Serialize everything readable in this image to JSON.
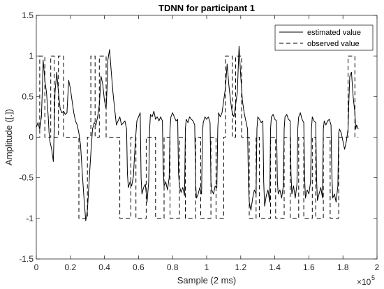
{
  "chart_data": {
    "type": "line",
    "title": "TDNN for participant 1",
    "xlabel": "Sample (2 ms)",
    "ylabel": "Amplitude ([.])",
    "x_exponent_base": "×10",
    "x_exponent_power": "5",
    "xlim": [
      0,
      2
    ],
    "ylim": [
      -1.5,
      1.5
    ],
    "x_ticks": [
      0,
      0.2,
      0.4,
      0.6,
      0.8,
      1,
      1.2,
      1.4,
      1.6,
      1.8,
      2
    ],
    "x_tick_labels": [
      "0",
      "0.2",
      "0.4",
      "0.6",
      "0.8",
      "1",
      "1.2",
      "1.4",
      "1.6",
      "1.8",
      "2"
    ],
    "y_ticks": [
      -1.5,
      -1,
      -0.5,
      0,
      0.5,
      1,
      1.5
    ],
    "y_tick_labels": [
      "-1.5",
      "-1",
      "-0.5",
      "0",
      "0.5",
      "1",
      "1.5"
    ],
    "grid": false,
    "legend_position": "top-right",
    "series": [
      {
        "name": "estimated value",
        "style": "solid",
        "color": "#000000",
        "points": [
          [
            0.0,
            0.12
          ],
          [
            0.01,
            0.18
          ],
          [
            0.02,
            0.1
          ],
          [
            0.03,
            0.25
          ],
          [
            0.035,
            0.55
          ],
          [
            0.04,
            0.95
          ],
          [
            0.05,
            0.7
          ],
          [
            0.06,
            0.55
          ],
          [
            0.07,
            0.25
          ],
          [
            0.075,
            0.05
          ],
          [
            0.08,
            -0.05
          ],
          [
            0.09,
            -0.15
          ],
          [
            0.1,
            -0.3
          ],
          [
            0.105,
            0.1
          ],
          [
            0.11,
            0.55
          ],
          [
            0.12,
            0.8
          ],
          [
            0.13,
            0.55
          ],
          [
            0.14,
            0.35
          ],
          [
            0.15,
            0.3
          ],
          [
            0.16,
            0.32
          ],
          [
            0.17,
            0.28
          ],
          [
            0.18,
            0.3
          ],
          [
            0.185,
            0.5
          ],
          [
            0.19,
            0.7
          ],
          [
            0.2,
            0.6
          ],
          [
            0.21,
            0.45
          ],
          [
            0.22,
            0.3
          ],
          [
            0.23,
            0.2
          ],
          [
            0.24,
            0.15
          ],
          [
            0.25,
            0.05
          ],
          [
            0.26,
            -0.1
          ],
          [
            0.27,
            -0.45
          ],
          [
            0.28,
            -0.75
          ],
          [
            0.29,
            -1.03
          ],
          [
            0.3,
            -0.9
          ],
          [
            0.31,
            -0.55
          ],
          [
            0.32,
            -0.2
          ],
          [
            0.33,
            0.1
          ],
          [
            0.34,
            0.18
          ],
          [
            0.35,
            0.15
          ],
          [
            0.36,
            0.25
          ],
          [
            0.37,
            0.4
          ],
          [
            0.38,
            0.75
          ],
          [
            0.39,
            0.65
          ],
          [
            0.4,
            0.45
          ],
          [
            0.41,
            0.35
          ],
          [
            0.415,
            0.6
          ],
          [
            0.42,
            0.95
          ],
          [
            0.43,
            1.08
          ],
          [
            0.44,
            0.8
          ],
          [
            0.45,
            0.55
          ],
          [
            0.46,
            0.35
          ],
          [
            0.47,
            0.15
          ],
          [
            0.48,
            0.2
          ],
          [
            0.49,
            0.25
          ],
          [
            0.5,
            0.15
          ],
          [
            0.52,
            0.2
          ],
          [
            0.53,
            0.1
          ],
          [
            0.535,
            -0.45
          ],
          [
            0.54,
            -0.62
          ],
          [
            0.55,
            -0.55
          ],
          [
            0.56,
            -0.6
          ],
          [
            0.57,
            -0.48
          ],
          [
            0.58,
            -0.1
          ],
          [
            0.59,
            0.2
          ],
          [
            0.6,
            0.25
          ],
          [
            0.61,
            0.3
          ],
          [
            0.615,
            -0.5
          ],
          [
            0.62,
            -0.7
          ],
          [
            0.63,
            -0.62
          ],
          [
            0.64,
            -0.58
          ],
          [
            0.65,
            -0.8
          ],
          [
            0.66,
            -0.55
          ],
          [
            0.665,
            0.1
          ],
          [
            0.67,
            0.28
          ],
          [
            0.68,
            0.25
          ],
          [
            0.69,
            0.32
          ],
          [
            0.7,
            0.22
          ],
          [
            0.71,
            0.25
          ],
          [
            0.72,
            0.2
          ],
          [
            0.73,
            0.25
          ],
          [
            0.74,
            0.2
          ],
          [
            0.745,
            -0.4
          ],
          [
            0.75,
            -0.6
          ],
          [
            0.76,
            -0.55
          ],
          [
            0.77,
            -0.65
          ],
          [
            0.78,
            -0.5
          ],
          [
            0.785,
            0.1
          ],
          [
            0.79,
            0.25
          ],
          [
            0.8,
            0.3
          ],
          [
            0.81,
            0.25
          ],
          [
            0.82,
            0.2
          ],
          [
            0.83,
            0.22
          ],
          [
            0.835,
            -0.45
          ],
          [
            0.84,
            -0.6
          ],
          [
            0.85,
            -0.68
          ],
          [
            0.86,
            -0.62
          ],
          [
            0.87,
            -0.72
          ],
          [
            0.875,
            0.1
          ],
          [
            0.88,
            0.22
          ],
          [
            0.89,
            0.18
          ],
          [
            0.9,
            0.25
          ],
          [
            0.91,
            0.22
          ],
          [
            0.92,
            0.2
          ],
          [
            0.93,
            0.15
          ],
          [
            0.935,
            -0.55
          ],
          [
            0.94,
            -0.75
          ],
          [
            0.95,
            -0.7
          ],
          [
            0.96,
            -0.62
          ],
          [
            0.97,
            -0.7
          ],
          [
            0.975,
            0.05
          ],
          [
            0.98,
            0.18
          ],
          [
            0.99,
            0.25
          ],
          [
            1.0,
            0.22
          ],
          [
            1.01,
            0.25
          ],
          [
            1.02,
            0.18
          ],
          [
            1.025,
            -0.55
          ],
          [
            1.03,
            -0.65
          ],
          [
            1.04,
            -0.7
          ],
          [
            1.05,
            -0.6
          ],
          [
            1.06,
            -0.62
          ],
          [
            1.065,
            0.1
          ],
          [
            1.07,
            0.3
          ],
          [
            1.08,
            0.25
          ],
          [
            1.09,
            0.3
          ],
          [
            1.1,
            0.45
          ],
          [
            1.11,
            0.6
          ],
          [
            1.12,
            0.9
          ],
          [
            1.13,
            0.65
          ],
          [
            1.14,
            0.45
          ],
          [
            1.15,
            0.3
          ],
          [
            1.16,
            0.25
          ],
          [
            1.17,
            0.4
          ],
          [
            1.18,
            0.55
          ],
          [
            1.19,
            1.12
          ],
          [
            1.2,
            0.75
          ],
          [
            1.21,
            0.45
          ],
          [
            1.22,
            0.3
          ],
          [
            1.23,
            0.2
          ],
          [
            1.24,
            0.1
          ],
          [
            1.245,
            -0.55
          ],
          [
            1.25,
            -0.8
          ],
          [
            1.26,
            -0.9
          ],
          [
            1.27,
            -0.75
          ],
          [
            1.28,
            -0.65
          ],
          [
            1.29,
            -0.7
          ],
          [
            1.295,
            0.1
          ],
          [
            1.3,
            0.25
          ],
          [
            1.31,
            0.22
          ],
          [
            1.32,
            0.18
          ],
          [
            1.33,
            0.2
          ],
          [
            1.335,
            -0.55
          ],
          [
            1.34,
            -0.85
          ],
          [
            1.35,
            -0.72
          ],
          [
            1.36,
            -0.65
          ],
          [
            1.37,
            -0.8
          ],
          [
            1.375,
            0.1
          ],
          [
            1.38,
            0.25
          ],
          [
            1.39,
            0.28
          ],
          [
            1.4,
            0.22
          ],
          [
            1.41,
            0.2
          ],
          [
            1.415,
            -0.55
          ],
          [
            1.42,
            -0.7
          ],
          [
            1.43,
            -0.65
          ],
          [
            1.44,
            -0.75
          ],
          [
            1.45,
            -0.6
          ],
          [
            1.455,
            0.1
          ],
          [
            1.46,
            0.25
          ],
          [
            1.47,
            0.28
          ],
          [
            1.48,
            0.22
          ],
          [
            1.49,
            0.2
          ],
          [
            1.495,
            -0.45
          ],
          [
            1.5,
            -0.7
          ],
          [
            1.51,
            -0.6
          ],
          [
            1.52,
            -0.75
          ],
          [
            1.53,
            -0.58
          ],
          [
            1.535,
            0.1
          ],
          [
            1.54,
            0.25
          ],
          [
            1.55,
            0.3
          ],
          [
            1.56,
            0.22
          ],
          [
            1.57,
            0.18
          ],
          [
            1.575,
            -0.5
          ],
          [
            1.58,
            -0.75
          ],
          [
            1.59,
            -0.65
          ],
          [
            1.6,
            -0.7
          ],
          [
            1.61,
            -0.55
          ],
          [
            1.615,
            0.1
          ],
          [
            1.62,
            0.25
          ],
          [
            1.63,
            0.2
          ],
          [
            1.64,
            0.18
          ],
          [
            1.645,
            -0.5
          ],
          [
            1.65,
            -0.78
          ],
          [
            1.66,
            -0.7
          ],
          [
            1.67,
            -0.62
          ],
          [
            1.68,
            -0.75
          ],
          [
            1.685,
            0.1
          ],
          [
            1.69,
            0.2
          ],
          [
            1.7,
            0.15
          ],
          [
            1.71,
            0.2
          ],
          [
            1.72,
            0.22
          ],
          [
            1.73,
            0.15
          ],
          [
            1.735,
            -0.45
          ],
          [
            1.74,
            -0.75
          ],
          [
            1.75,
            -0.7
          ],
          [
            1.76,
            -0.8
          ],
          [
            1.77,
            -0.6
          ],
          [
            1.775,
            0.05
          ],
          [
            1.78,
            0.1
          ],
          [
            1.79,
            0.05
          ],
          [
            1.8,
            -0.05
          ],
          [
            1.81,
            -0.15
          ],
          [
            1.82,
            -0.05
          ],
          [
            1.83,
            0.1
          ],
          [
            1.835,
            0.45
          ],
          [
            1.84,
            0.75
          ],
          [
            1.85,
            0.8
          ],
          [
            1.86,
            0.5
          ],
          [
            1.87,
            0.3
          ],
          [
            1.875,
            0.1
          ],
          [
            1.88,
            0.15
          ],
          [
            1.89,
            0.1
          ]
        ]
      },
      {
        "name": "observed value",
        "style": "dashed",
        "color": "#000000",
        "points": [
          [
            0.0,
            0
          ],
          [
            0.02,
            0
          ],
          [
            0.02,
            1
          ],
          [
            0.05,
            1
          ],
          [
            0.05,
            0
          ],
          [
            0.085,
            0
          ],
          [
            0.085,
            1
          ],
          [
            0.105,
            1
          ],
          [
            0.105,
            0
          ],
          [
            0.13,
            0
          ],
          [
            0.13,
            1
          ],
          [
            0.16,
            1
          ],
          [
            0.16,
            0
          ],
          [
            0.25,
            0
          ],
          [
            0.25,
            -1
          ],
          [
            0.3,
            -1
          ],
          [
            0.3,
            0
          ],
          [
            0.32,
            0
          ],
          [
            0.32,
            1
          ],
          [
            0.345,
            1
          ],
          [
            0.345,
            0
          ],
          [
            0.37,
            0
          ],
          [
            0.37,
            1
          ],
          [
            0.41,
            1
          ],
          [
            0.41,
            0
          ],
          [
            0.49,
            0
          ],
          [
            0.49,
            -1
          ],
          [
            0.555,
            -1
          ],
          [
            0.555,
            0
          ],
          [
            0.585,
            0
          ],
          [
            0.585,
            -1
          ],
          [
            0.645,
            -1
          ],
          [
            0.645,
            0
          ],
          [
            0.7,
            0
          ],
          [
            0.7,
            -1
          ],
          [
            0.75,
            -1
          ],
          [
            0.75,
            0
          ],
          [
            0.785,
            0
          ],
          [
            0.785,
            -1
          ],
          [
            0.84,
            -1
          ],
          [
            0.84,
            0
          ],
          [
            0.875,
            0
          ],
          [
            0.875,
            -1
          ],
          [
            0.935,
            -1
          ],
          [
            0.935,
            0
          ],
          [
            0.965,
            0
          ],
          [
            0.965,
            -1
          ],
          [
            1.025,
            -1
          ],
          [
            1.025,
            0
          ],
          [
            1.055,
            0
          ],
          [
            1.055,
            -1
          ],
          [
            1.1,
            -1
          ],
          [
            1.1,
            0
          ],
          [
            1.11,
            0
          ],
          [
            1.11,
            1
          ],
          [
            1.15,
            1
          ],
          [
            1.15,
            0
          ],
          [
            1.17,
            0
          ],
          [
            1.17,
            1
          ],
          [
            1.205,
            1
          ],
          [
            1.205,
            0
          ],
          [
            1.25,
            0
          ],
          [
            1.25,
            -1
          ],
          [
            1.29,
            -1
          ],
          [
            1.29,
            0
          ],
          [
            1.31,
            0
          ],
          [
            1.31,
            -1
          ],
          [
            1.375,
            -1
          ],
          [
            1.375,
            0
          ],
          [
            1.405,
            0
          ],
          [
            1.405,
            -1
          ],
          [
            1.455,
            -1
          ],
          [
            1.455,
            0
          ],
          [
            1.49,
            0
          ],
          [
            1.49,
            -1
          ],
          [
            1.54,
            -1
          ],
          [
            1.54,
            0
          ],
          [
            1.57,
            0
          ],
          [
            1.57,
            -1
          ],
          [
            1.62,
            -1
          ],
          [
            1.62,
            0
          ],
          [
            1.64,
            0
          ],
          [
            1.64,
            -1
          ],
          [
            1.685,
            -1
          ],
          [
            1.685,
            0
          ],
          [
            1.725,
            0
          ],
          [
            1.725,
            -1
          ],
          [
            1.775,
            -1
          ],
          [
            1.775,
            0
          ],
          [
            1.83,
            0
          ],
          [
            1.83,
            1
          ],
          [
            1.87,
            1
          ],
          [
            1.87,
            0
          ],
          [
            1.89,
            0
          ]
        ]
      }
    ]
  }
}
